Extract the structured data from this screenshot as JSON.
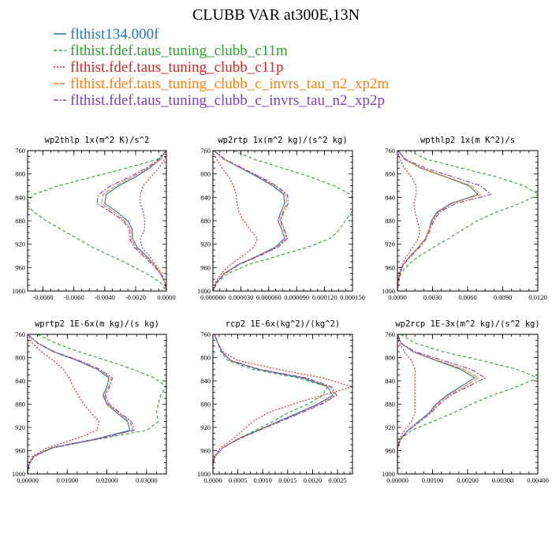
{
  "figure": {
    "title": "CLUBB VAR at300E,13N"
  },
  "legend": [
    {
      "label": "flthist134.000f",
      "color": "#1f77b4",
      "dash": ""
    },
    {
      "label": "flthist.fdef.taus_tuning_clubb_c11m",
      "color": "#2ca02c",
      "dash": "4,3"
    },
    {
      "label": "flthist.fdef.taus_tuning_clubb_c11p",
      "color": "#d62728",
      "dash": "2,2"
    },
    {
      "label": "flthist.fdef.taus_tuning_clubb_c_invrs_tau_n2_xp2m",
      "color": "#ff7f0e",
      "dash": "6,2"
    },
    {
      "label": "flthist.fdef.taus_tuning_clubb_c_invrs_tau_n2_xp2p",
      "color": "#7f3fbf",
      "dash": "6,2,2,2"
    }
  ],
  "chart_data": [
    {
      "type": "line",
      "title": "wp2thlp  1x(m^2 K)/s^2",
      "ylim": [
        760,
        1000
      ],
      "xlim": [
        -0.009,
        0.0
      ],
      "yticks": [
        760,
        800,
        840,
        880,
        920,
        960,
        1000
      ],
      "ytick_labels": [
        "760",
        "800",
        "840",
        "880",
        "920",
        "960",
        "1000"
      ],
      "xticks": [
        -0.008,
        -0.006,
        -0.004,
        -0.002,
        0.0
      ],
      "xtick_labels": [
        "-0.0080",
        "-0.0060",
        "-0.0040",
        "-0.0020",
        "0.0000"
      ],
      "levels": [
        760,
        775,
        790,
        805,
        820,
        835,
        850,
        865,
        880,
        895,
        910,
        925,
        940,
        955,
        970,
        985,
        1000
      ],
      "series": [
        {
          "values": [
            0.0,
            -0.0004,
            -0.0011,
            -0.002,
            -0.0031,
            -0.0039,
            -0.004,
            -0.0032,
            -0.0025,
            -0.0022,
            -0.0022,
            -0.0019,
            -0.0013,
            -0.0008,
            -0.0004,
            -0.0001,
            0.0
          ]
        },
        {
          "values": [
            0.0,
            -0.0006,
            -0.0026,
            -0.0048,
            -0.007,
            -0.0086,
            -0.0091,
            -0.0086,
            -0.0078,
            -0.0068,
            -0.0058,
            -0.0048,
            -0.0036,
            -0.0024,
            -0.0013,
            -0.0004,
            0.0
          ]
        },
        {
          "values": [
            0.0,
            -0.0001,
            -0.0005,
            -0.001,
            -0.0015,
            -0.0017,
            -0.0017,
            -0.0015,
            -0.0014,
            -0.0014,
            -0.0017,
            -0.0016,
            -0.0011,
            -0.0007,
            -0.0003,
            -0.0001,
            0.0
          ]
        },
        {
          "values": [
            0.0,
            -0.0004,
            -0.0012,
            -0.0022,
            -0.0033,
            -0.0041,
            -0.0042,
            -0.0034,
            -0.0027,
            -0.0023,
            -0.0023,
            -0.002,
            -0.0014,
            -0.0008,
            -0.0004,
            -0.0001,
            0.0
          ]
        },
        {
          "values": [
            0.0,
            -0.0005,
            -0.0013,
            -0.0024,
            -0.0036,
            -0.0044,
            -0.0045,
            -0.0036,
            -0.0028,
            -0.0024,
            -0.0024,
            -0.0021,
            -0.0015,
            -0.0009,
            -0.0004,
            -0.0001,
            0.0
          ]
        }
      ]
    },
    {
      "type": "line",
      "title": "wp2rtp  1x(m^2 kg)/(s^2 kg)",
      "ylim": [
        760,
        1000
      ],
      "xlim": [
        0.0,
        0.00015
      ],
      "yticks": [
        760,
        800,
        840,
        880,
        920,
        960,
        1000
      ],
      "ytick_labels": [
        "760",
        "800",
        "840",
        "880",
        "920",
        "960",
        "1000"
      ],
      "xticks": [
        0.0,
        3e-05,
        6e-05,
        9e-05,
        0.00012,
        0.00015
      ],
      "xtick_labels": [
        "0.000000",
        "0.000030",
        "0.000060",
        "0.000090",
        "0.000120",
        "0.000150"
      ],
      "levels": [
        760,
        775,
        790,
        805,
        820,
        835,
        850,
        865,
        880,
        895,
        910,
        925,
        940,
        955,
        970,
        985,
        1000
      ],
      "series": [
        {
          "values": [
            1e-06,
            1.2e-05,
            3e-05,
            4.8e-05,
            6.4e-05,
            7.6e-05,
            7.7e-05,
            7.3e-05,
            7e-05,
            7.4e-05,
            7.7e-05,
            6.7e-05,
            4.8e-05,
            2.7e-05,
            1.2e-05,
            4e-06,
            0.0
          ]
        },
        {
          "values": [
            2.2e-05,
            4.5e-05,
            7.5e-05,
            0.000105,
            0.00013,
            0.000148,
            0.000152,
            0.000149,
            0.000142,
            0.000136,
            0.000126,
            0.000102,
            7e-05,
            3.8e-05,
            1.6e-05,
            5e-06,
            0.0
          ]
        },
        {
          "values": [
            0.0,
            4e-06,
            1e-05,
            1.7e-05,
            2.2e-05,
            2.5e-05,
            2.6e-05,
            2.8e-05,
            3.3e-05,
            4e-05,
            4.8e-05,
            4.4e-05,
            3.2e-05,
            1.9e-05,
            9e-06,
            3e-06,
            0.0
          ]
        },
        {
          "values": [
            1e-06,
            1.2e-05,
            3.1e-05,
            5e-05,
            6.6e-05,
            7.8e-05,
            7.9e-05,
            7.5e-05,
            7.2e-05,
            7.6e-05,
            7.9e-05,
            6.9e-05,
            4.9e-05,
            2.8e-05,
            1.2e-05,
            4e-06,
            0.0
          ]
        },
        {
          "values": [
            1e-06,
            1.3e-05,
            3.2e-05,
            5.1e-05,
            6.8e-05,
            8e-05,
            8.1e-05,
            7.6e-05,
            7.3e-05,
            7.7e-05,
            8e-05,
            7e-05,
            5e-05,
            2.8e-05,
            1.3e-05,
            4e-06,
            0.0
          ]
        }
      ]
    },
    {
      "type": "line",
      "title": "wpthlp2  1x(m K^2)/s",
      "ylim": [
        760,
        1000
      ],
      "xlim": [
        0.0,
        0.012
      ],
      "yticks": [
        760,
        800,
        840,
        880,
        920,
        960,
        1000
      ],
      "ytick_labels": [
        "760",
        "800",
        "840",
        "880",
        "920",
        "960",
        "1000"
      ],
      "xticks": [
        0.0,
        0.003,
        0.006,
        0.009,
        0.012
      ],
      "xtick_labels": [
        "0.0000",
        "0.0030",
        "0.0060",
        "0.0090",
        "0.0120"
      ],
      "levels": [
        760,
        775,
        790,
        805,
        820,
        835,
        850,
        865,
        880,
        895,
        910,
        925,
        940,
        955,
        970,
        985,
        1000
      ],
      "series": [
        {
          "values": [
            5e-05,
            0.0006,
            0.002,
            0.0041,
            0.0061,
            0.0069,
            0.0046,
            0.0034,
            0.0029,
            0.0027,
            0.0024,
            0.0018,
            0.0011,
            0.0005,
            0.0002,
            5e-05,
            0.0
          ]
        },
        {
          "values": [
            0.001,
            0.0025,
            0.0055,
            0.0085,
            0.0108,
            0.0121,
            0.0105,
            0.0085,
            0.0068,
            0.0056,
            0.0044,
            0.0031,
            0.0019,
            0.0009,
            0.0003,
            0.0001,
            0.0
          ]
        },
        {
          "values": [
            3e-05,
            0.0002,
            0.0006,
            0.0012,
            0.0016,
            0.0016,
            0.0014,
            0.0015,
            0.0017,
            0.0019,
            0.0018,
            0.0013,
            0.0008,
            0.0004,
            0.0001,
            3e-05,
            0.0
          ]
        },
        {
          "values": [
            5e-05,
            0.0006,
            0.0021,
            0.0042,
            0.0063,
            0.0071,
            0.0047,
            0.0035,
            0.003,
            0.0027,
            0.0024,
            0.0018,
            0.0011,
            0.0005,
            0.0002,
            5e-05,
            0.0
          ]
        },
        {
          "values": [
            5e-05,
            0.0007,
            0.0024,
            0.0048,
            0.0071,
            0.008,
            0.005,
            0.0036,
            0.0031,
            0.0028,
            0.0025,
            0.0019,
            0.0012,
            0.0005,
            0.0002,
            5e-05,
            0.0
          ]
        }
      ]
    },
    {
      "type": "line",
      "title": "wprtp2  1E-6x(m kg)/(s kg)",
      "ylim": [
        760,
        1000
      ],
      "xlim": [
        0.0,
        0.035
      ],
      "yticks": [
        760,
        800,
        840,
        880,
        920,
        960,
        1000
      ],
      "ytick_labels": [
        "760",
        "800",
        "840",
        "880",
        "920",
        "960",
        "1000"
      ],
      "xticks": [
        0.0,
        0.01,
        0.02,
        0.03
      ],
      "xtick_labels": [
        "0.00000",
        "0.01000",
        "0.02000",
        "0.03000"
      ],
      "levels": [
        760,
        775,
        790,
        805,
        820,
        835,
        850,
        865,
        880,
        895,
        910,
        925,
        940,
        955,
        970,
        985,
        1000
      ],
      "series": [
        {
          "values": [
            0.0,
            0.0025,
            0.0065,
            0.0125,
            0.0175,
            0.0205,
            0.02,
            0.019,
            0.02,
            0.0225,
            0.0252,
            0.0258,
            0.017,
            0.006,
            0.0015,
            0.0003,
            0.0
          ]
        },
        {
          "values": [
            0.0025,
            0.007,
            0.013,
            0.02,
            0.0265,
            0.032,
            0.035,
            0.0335,
            0.033,
            0.0325,
            0.033,
            0.03,
            0.018,
            0.0065,
            0.0016,
            0.0003,
            0.0
          ]
        },
        {
          "values": [
            0.0,
            0.0012,
            0.0035,
            0.0065,
            0.009,
            0.0105,
            0.0115,
            0.0128,
            0.0142,
            0.016,
            0.018,
            0.0175,
            0.012,
            0.005,
            0.0012,
            0.0002,
            0.0
          ]
        },
        {
          "values": [
            0.0,
            0.0025,
            0.0067,
            0.0128,
            0.0178,
            0.021,
            0.0204,
            0.0193,
            0.0203,
            0.023,
            0.0258,
            0.0265,
            0.0175,
            0.0062,
            0.0015,
            0.0003,
            0.0
          ]
        },
        {
          "values": [
            0.0,
            0.0026,
            0.0068,
            0.013,
            0.0182,
            0.0214,
            0.0207,
            0.0196,
            0.0206,
            0.0233,
            0.0262,
            0.0268,
            0.0177,
            0.0063,
            0.0016,
            0.0003,
            0.0
          ]
        }
      ]
    },
    {
      "type": "line",
      "title": "rcp2  1E-6x(kg^2)/(kg^2)",
      "ylim": [
        760,
        1000
      ],
      "xlim": [
        0.0,
        0.0028
      ],
      "yticks": [
        760,
        800,
        840,
        880,
        920,
        960,
        1000
      ],
      "ytick_labels": [
        "760",
        "800",
        "840",
        "880",
        "920",
        "960",
        "1000"
      ],
      "xticks": [
        0.0,
        0.0005,
        0.001,
        0.0015,
        0.002,
        0.0025
      ],
      "xtick_labels": [
        "0.0000",
        "0.0005",
        "0.0010",
        "0.0015",
        "0.0020",
        "0.0025"
      ],
      "levels": [
        760,
        775,
        790,
        805,
        820,
        835,
        850,
        865,
        880,
        895,
        910,
        925,
        940,
        955,
        970,
        985,
        1000
      ],
      "series": [
        {
          "values": [
            3e-05,
            0.0001,
            0.00018,
            0.00035,
            0.0009,
            0.0018,
            0.0023,
            0.0024,
            0.0021,
            0.0017,
            0.0013,
            0.0009,
            0.0005,
            0.0002,
            4e-05,
            0.0,
            0.0
          ]
        },
        {
          "values": [
            3e-05,
            0.0001,
            0.00016,
            0.0003,
            0.0008,
            0.0017,
            0.0023,
            0.0022,
            0.0019,
            0.0015,
            0.0012,
            0.00085,
            0.0005,
            0.0002,
            4e-05,
            0.0,
            0.0
          ]
        },
        {
          "values": [
            3e-05,
            0.0001,
            0.0002,
            0.0005,
            0.0013,
            0.0022,
            0.0028,
            0.0022,
            0.0016,
            0.0011,
            0.0008,
            0.0006,
            0.0004,
            0.00015,
            3e-05,
            0.0,
            0.0
          ]
        },
        {
          "values": [
            3e-05,
            0.0001,
            0.00018,
            0.00036,
            0.00092,
            0.00185,
            0.00235,
            0.00245,
            0.00215,
            0.00175,
            0.00133,
            0.00092,
            0.00051,
            0.0002,
            4e-05,
            0.0,
            0.0
          ]
        },
        {
          "values": [
            3e-05,
            0.0001,
            0.00018,
            0.00036,
            0.00093,
            0.00187,
            0.00238,
            0.00248,
            0.00218,
            0.00177,
            0.00135,
            0.00093,
            0.00052,
            0.0002,
            4e-05,
            0.0,
            0.0
          ]
        }
      ]
    },
    {
      "type": "line",
      "title": "wp2rcp  1E-3x(m^2 kg)/(s^2 kg)",
      "ylim": [
        760,
        1000
      ],
      "xlim": [
        0.0,
        0.004
      ],
      "yticks": [
        760,
        800,
        840,
        880,
        920,
        960,
        1000
      ],
      "ytick_labels": [
        "760",
        "800",
        "840",
        "880",
        "920",
        "960",
        "1000"
      ],
      "xticks": [
        0.0,
        0.001,
        0.002,
        0.003,
        0.004
      ],
      "xtick_labels": [
        "0.00000",
        "0.00100",
        "0.00200",
        "0.00300",
        "0.00400"
      ],
      "levels": [
        760,
        775,
        790,
        805,
        820,
        835,
        850,
        865,
        880,
        895,
        910,
        925,
        940,
        955,
        970,
        985,
        1000
      ],
      "series": [
        {
          "values": [
            1e-05,
            0.0001,
            0.00045,
            0.0011,
            0.0018,
            0.0022,
            0.0018,
            0.0014,
            0.0011,
            0.0009,
            0.0006,
            0.0003,
            8e-05,
            1e-05,
            0.0,
            0.0,
            0.0
          ]
        },
        {
          "values": [
            0.0001,
            0.0005,
            0.0013,
            0.0024,
            0.0034,
            0.004,
            0.0034,
            0.0027,
            0.0021,
            0.0016,
            0.001,
            0.0004,
            0.0001,
            1e-05,
            0.0,
            0.0,
            0.0
          ]
        },
        {
          "values": [
            0.0,
            5e-05,
            0.0002,
            0.0004,
            0.0005,
            0.0005,
            0.0005,
            0.0005,
            0.0005,
            0.0005,
            0.0004,
            0.0002,
            5e-05,
            0.0,
            0.0,
            0.0,
            0.0
          ]
        },
        {
          "values": [
            1e-05,
            0.0001,
            0.00047,
            0.00115,
            0.0019,
            0.0023,
            0.0019,
            0.00145,
            0.00115,
            0.00092,
            0.00062,
            0.00031,
            8e-05,
            1e-05,
            0.0,
            0.0,
            0.0
          ]
        },
        {
          "values": [
            1e-05,
            0.0001,
            0.0005,
            0.0013,
            0.0021,
            0.0025,
            0.002,
            0.0015,
            0.0012,
            0.00095,
            0.00064,
            0.00032,
            9e-05,
            1e-05,
            0.0,
            0.0,
            0.0
          ]
        }
      ]
    }
  ]
}
